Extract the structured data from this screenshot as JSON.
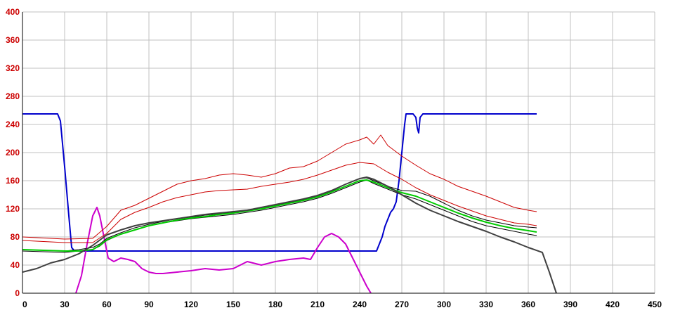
{
  "chart_data": {
    "type": "line",
    "title": "",
    "xlabel": "",
    "ylabel": "",
    "xlim": [
      0,
      450
    ],
    "ylim": [
      0,
      400
    ],
    "x_ticks": [
      0,
      30,
      60,
      90,
      120,
      150,
      180,
      210,
      240,
      270,
      300,
      330,
      360,
      390,
      420,
      450
    ],
    "y_ticks": [
      0,
      40,
      80,
      120,
      160,
      200,
      240,
      280,
      320,
      360,
      400
    ],
    "grid": true,
    "legend": "none",
    "colors": {
      "y_tick_text": "#cc0000",
      "x_tick_text": "#000000",
      "grid": "#c0c0c0",
      "axis": "#000000"
    },
    "series": [
      {
        "color": "#0000cc",
        "width": 2,
        "points": [
          [
            0,
            255
          ],
          [
            25,
            255
          ],
          [
            27,
            245
          ],
          [
            30,
            180
          ],
          [
            33,
            110
          ],
          [
            35,
            65
          ],
          [
            37,
            60
          ],
          [
            45,
            60
          ],
          [
            100,
            60
          ],
          [
            200,
            60
          ],
          [
            252,
            60
          ],
          [
            254,
            70
          ],
          [
            256,
            80
          ],
          [
            258,
            95
          ],
          [
            260,
            105
          ],
          [
            262,
            115
          ],
          [
            264,
            120
          ],
          [
            266,
            130
          ],
          [
            268,
            160
          ],
          [
            270,
            200
          ],
          [
            272,
            240
          ],
          [
            273,
            255
          ],
          [
            278,
            255
          ],
          [
            280,
            250
          ],
          [
            281,
            235
          ],
          [
            282,
            228
          ],
          [
            283,
            250
          ],
          [
            285,
            255
          ],
          [
            295,
            255
          ],
          [
            300,
            255
          ],
          [
            320,
            255
          ],
          [
            340,
            255
          ],
          [
            366,
            255
          ]
        ]
      },
      {
        "color": "#cc00cc",
        "width": 2,
        "points": [
          [
            38,
            0
          ],
          [
            42,
            25
          ],
          [
            46,
            70
          ],
          [
            50,
            110
          ],
          [
            53,
            122
          ],
          [
            55,
            110
          ],
          [
            58,
            80
          ],
          [
            61,
            50
          ],
          [
            65,
            45
          ],
          [
            70,
            50
          ],
          [
            75,
            48
          ],
          [
            80,
            45
          ],
          [
            85,
            35
          ],
          [
            90,
            30
          ],
          [
            95,
            28
          ],
          [
            100,
            28
          ],
          [
            110,
            30
          ],
          [
            120,
            32
          ],
          [
            130,
            35
          ],
          [
            140,
            33
          ],
          [
            150,
            35
          ],
          [
            160,
            45
          ],
          [
            170,
            40
          ],
          [
            180,
            45
          ],
          [
            190,
            48
          ],
          [
            200,
            50
          ],
          [
            205,
            48
          ],
          [
            210,
            65
          ],
          [
            215,
            80
          ],
          [
            220,
            85
          ],
          [
            225,
            80
          ],
          [
            230,
            70
          ],
          [
            235,
            50
          ],
          [
            240,
            30
          ],
          [
            245,
            10
          ],
          [
            248,
            0
          ]
        ]
      },
      {
        "color": "#cc0000",
        "width": 1,
        "points": [
          [
            0,
            80
          ],
          [
            30,
            77
          ],
          [
            50,
            78
          ],
          [
            60,
            95
          ],
          [
            70,
            118
          ],
          [
            80,
            125
          ],
          [
            90,
            135
          ],
          [
            100,
            145
          ],
          [
            110,
            155
          ],
          [
            120,
            160
          ],
          [
            130,
            163
          ],
          [
            140,
            168
          ],
          [
            150,
            170
          ],
          [
            160,
            168
          ],
          [
            170,
            165
          ],
          [
            180,
            170
          ],
          [
            190,
            178
          ],
          [
            200,
            180
          ],
          [
            210,
            188
          ],
          [
            220,
            200
          ],
          [
            230,
            212
          ],
          [
            240,
            218
          ],
          [
            245,
            222
          ],
          [
            250,
            212
          ],
          [
            255,
            225
          ],
          [
            260,
            210
          ],
          [
            270,
            195
          ],
          [
            280,
            182
          ],
          [
            290,
            170
          ],
          [
            300,
            162
          ],
          [
            310,
            152
          ],
          [
            320,
            145
          ],
          [
            330,
            138
          ],
          [
            340,
            130
          ],
          [
            350,
            122
          ],
          [
            360,
            118
          ],
          [
            366,
            116
          ]
        ]
      },
      {
        "color": "#cc0000",
        "width": 1,
        "points": [
          [
            0,
            75
          ],
          [
            30,
            72
          ],
          [
            50,
            72
          ],
          [
            60,
            85
          ],
          [
            70,
            105
          ],
          [
            80,
            115
          ],
          [
            90,
            122
          ],
          [
            100,
            130
          ],
          [
            110,
            136
          ],
          [
            120,
            140
          ],
          [
            130,
            144
          ],
          [
            140,
            146
          ],
          [
            150,
            147
          ],
          [
            160,
            148
          ],
          [
            170,
            152
          ],
          [
            180,
            155
          ],
          [
            190,
            158
          ],
          [
            200,
            162
          ],
          [
            210,
            168
          ],
          [
            220,
            175
          ],
          [
            230,
            182
          ],
          [
            240,
            186
          ],
          [
            250,
            184
          ],
          [
            260,
            172
          ],
          [
            270,
            162
          ],
          [
            280,
            150
          ],
          [
            290,
            140
          ],
          [
            300,
            132
          ],
          [
            310,
            124
          ],
          [
            320,
            117
          ],
          [
            330,
            110
          ],
          [
            340,
            105
          ],
          [
            350,
            100
          ],
          [
            360,
            98
          ],
          [
            366,
            96
          ]
        ]
      },
      {
        "color": "#000000",
        "width": 1,
        "points": [
          [
            0,
            62
          ],
          [
            30,
            60
          ],
          [
            40,
            62
          ],
          [
            50,
            65
          ],
          [
            55,
            70
          ],
          [
            60,
            78
          ],
          [
            70,
            86
          ],
          [
            80,
            93
          ],
          [
            90,
            98
          ],
          [
            100,
            102
          ],
          [
            110,
            106
          ],
          [
            120,
            108
          ],
          [
            130,
            111
          ],
          [
            140,
            113
          ],
          [
            150,
            115
          ],
          [
            160,
            118
          ],
          [
            170,
            122
          ],
          [
            180,
            125
          ],
          [
            190,
            129
          ],
          [
            200,
            133
          ],
          [
            210,
            138
          ],
          [
            220,
            145
          ],
          [
            230,
            155
          ],
          [
            240,
            163
          ],
          [
            245,
            164
          ],
          [
            250,
            160
          ],
          [
            260,
            152
          ],
          [
            270,
            146
          ],
          [
            280,
            145
          ],
          [
            290,
            138
          ],
          [
            300,
            128
          ],
          [
            310,
            118
          ],
          [
            320,
            110
          ],
          [
            330,
            104
          ],
          [
            340,
            100
          ],
          [
            350,
            96
          ],
          [
            360,
            94
          ],
          [
            366,
            93
          ]
        ]
      },
      {
        "color": "#000000",
        "width": 1,
        "points": [
          [
            0,
            60
          ],
          [
            30,
            58
          ],
          [
            40,
            60
          ],
          [
            50,
            62
          ],
          [
            55,
            67
          ],
          [
            60,
            75
          ],
          [
            70,
            84
          ],
          [
            80,
            90
          ],
          [
            90,
            96
          ],
          [
            100,
            100
          ],
          [
            110,
            103
          ],
          [
            120,
            106
          ],
          [
            130,
            108
          ],
          [
            140,
            110
          ],
          [
            150,
            112
          ],
          [
            160,
            115
          ],
          [
            170,
            118
          ],
          [
            180,
            122
          ],
          [
            190,
            126
          ],
          [
            200,
            130
          ],
          [
            210,
            135
          ],
          [
            220,
            142
          ],
          [
            230,
            150
          ],
          [
            240,
            158
          ],
          [
            245,
            161
          ],
          [
            250,
            156
          ],
          [
            260,
            148
          ],
          [
            270,
            140
          ],
          [
            280,
            134
          ],
          [
            290,
            126
          ],
          [
            300,
            118
          ],
          [
            310,
            110
          ],
          [
            320,
            102
          ],
          [
            330,
            96
          ],
          [
            340,
            92
          ],
          [
            350,
            88
          ],
          [
            360,
            84
          ],
          [
            366,
            82
          ]
        ]
      },
      {
        "color": "#00cc00",
        "width": 2,
        "points": [
          [
            0,
            62
          ],
          [
            30,
            60
          ],
          [
            40,
            60
          ],
          [
            50,
            62
          ],
          [
            55,
            68
          ],
          [
            60,
            76
          ],
          [
            70,
            84
          ],
          [
            80,
            90
          ],
          [
            90,
            96
          ],
          [
            100,
            100
          ],
          [
            110,
            104
          ],
          [
            120,
            107
          ],
          [
            130,
            109
          ],
          [
            140,
            112
          ],
          [
            150,
            114
          ],
          [
            160,
            117
          ],
          [
            170,
            120
          ],
          [
            180,
            124
          ],
          [
            190,
            128
          ],
          [
            200,
            132
          ],
          [
            210,
            137
          ],
          [
            220,
            144
          ],
          [
            230,
            152
          ],
          [
            240,
            160
          ],
          [
            245,
            161
          ],
          [
            250,
            158
          ],
          [
            260,
            150
          ],
          [
            270,
            143
          ],
          [
            280,
            138
          ],
          [
            290,
            130
          ],
          [
            300,
            122
          ],
          [
            310,
            114
          ],
          [
            320,
            107
          ],
          [
            330,
            101
          ],
          [
            340,
            96
          ],
          [
            350,
            92
          ],
          [
            360,
            89
          ],
          [
            366,
            87
          ]
        ]
      },
      {
        "color": "#404040",
        "width": 2,
        "points": [
          [
            0,
            30
          ],
          [
            10,
            35
          ],
          [
            20,
            43
          ],
          [
            30,
            48
          ],
          [
            40,
            56
          ],
          [
            50,
            68
          ],
          [
            60,
            83
          ],
          [
            70,
            90
          ],
          [
            80,
            96
          ],
          [
            90,
            100
          ],
          [
            100,
            103
          ],
          [
            110,
            106
          ],
          [
            120,
            109
          ],
          [
            130,
            112
          ],
          [
            140,
            114
          ],
          [
            150,
            116
          ],
          [
            160,
            118
          ],
          [
            170,
            122
          ],
          [
            180,
            126
          ],
          [
            190,
            130
          ],
          [
            200,
            134
          ],
          [
            210,
            139
          ],
          [
            220,
            146
          ],
          [
            230,
            155
          ],
          [
            240,
            163
          ],
          [
            245,
            165
          ],
          [
            250,
            162
          ],
          [
            260,
            152
          ],
          [
            270,
            140
          ],
          [
            280,
            128
          ],
          [
            290,
            118
          ],
          [
            300,
            110
          ],
          [
            310,
            102
          ],
          [
            320,
            95
          ],
          [
            330,
            88
          ],
          [
            340,
            80
          ],
          [
            350,
            73
          ],
          [
            360,
            65
          ],
          [
            370,
            58
          ],
          [
            375,
            30
          ],
          [
            380,
            0
          ]
        ]
      }
    ]
  }
}
